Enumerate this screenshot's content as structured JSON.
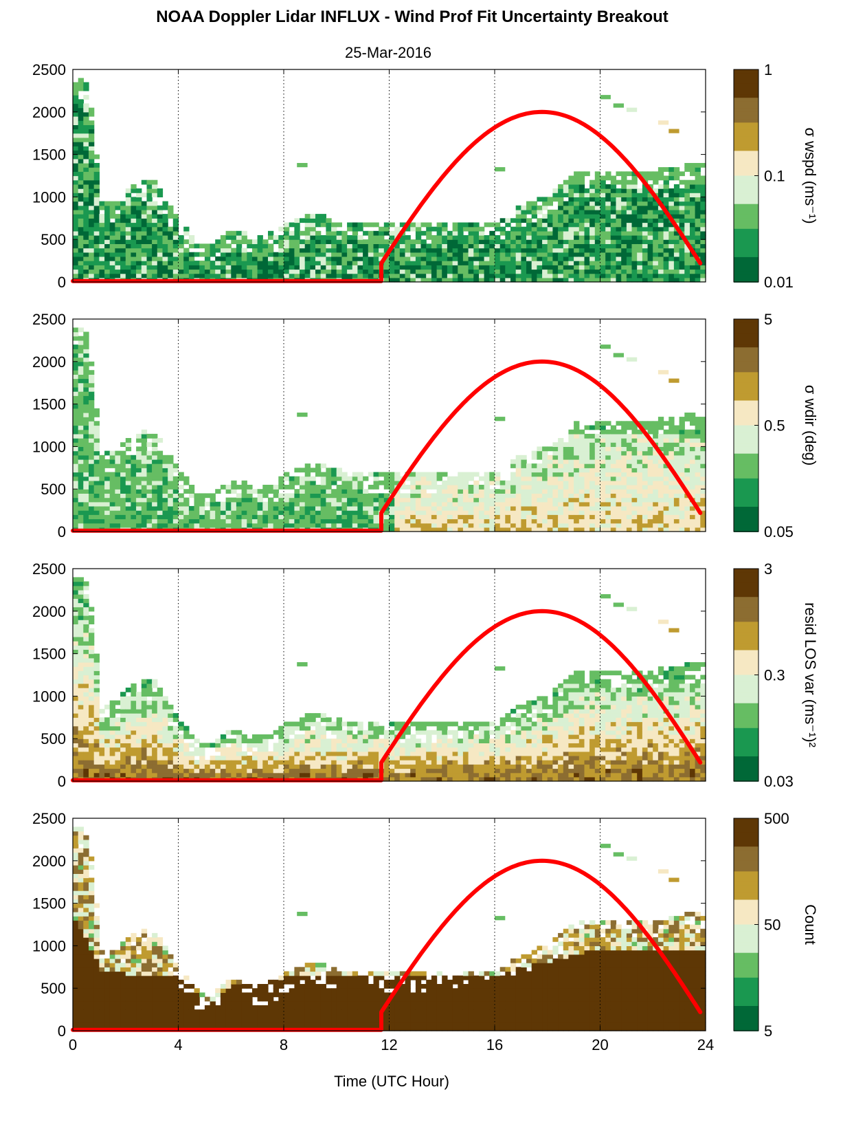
{
  "figure": {
    "title": "NOAA Doppler Lidar INFLUX - Wind Prof Fit Uncertainty Breakout",
    "date": "25-Mar-2016",
    "xlabel": "Time (UTC Hour)"
  },
  "colormap": [
    "#006837",
    "#1a9850",
    "#66bd63",
    "#d9f0d3",
    "#f6e8c3",
    "#bf9b30",
    "#8c6d31",
    "#5e3705"
  ],
  "curve_color": "#ff0000",
  "chart_data": [
    {
      "type": "heatmap",
      "panel": "wspd",
      "colorbar_label": "σ wspd (ms⁻¹)",
      "colorbar_ticks": [
        "1",
        "0.1",
        "0.01"
      ],
      "color_scale": "log",
      "xlim": [
        0,
        24
      ],
      "ylim": [
        0,
        2500
      ],
      "xticks": [
        0,
        4,
        8,
        12,
        16,
        20,
        24
      ],
      "yticks": [
        0,
        500,
        1000,
        1500,
        2000,
        2500
      ],
      "tick_labels": {
        "y": [
          "0",
          "500",
          "1000",
          "1500",
          "2000",
          "2500"
        ]
      },
      "grid": "dotted vertical at 4 h intervals",
      "top_height_profile": {
        "x": [
          0,
          0.5,
          1,
          1.5,
          2,
          3,
          4,
          4.5,
          5,
          6,
          7,
          8,
          9,
          10,
          11,
          12,
          14,
          16,
          17,
          18,
          19,
          20,
          21,
          22,
          23,
          23.8
        ],
        "y": [
          2400,
          2300,
          950,
          900,
          1100,
          1200,
          700,
          500,
          400,
          600,
          500,
          650,
          800,
          700,
          700,
          650,
          700,
          700,
          900,
          1000,
          1300,
          1300,
          1300,
          1300,
          1350,
          1400
        ]
      },
      "value_level": 0.15,
      "curve": {
        "x_start": 11.7,
        "x_peak": 17.8,
        "x_end": 23.8,
        "peak": 2000
      }
    },
    {
      "type": "heatmap",
      "panel": "wdir",
      "colorbar_label": "σ wdir (deg)",
      "colorbar_ticks": [
        "5",
        "0.5",
        "0.05"
      ],
      "color_scale": "log",
      "xlim": [
        0,
        24
      ],
      "ylim": [
        0,
        2500
      ],
      "yticks": [
        0,
        500,
        1000,
        1500,
        2000,
        2500
      ],
      "tick_labels": {
        "y": [
          "0",
          "500",
          "1000",
          "1500",
          "2000",
          "2500"
        ]
      },
      "top_height_profile": {
        "x": [
          0,
          0.5,
          1,
          1.5,
          2,
          3,
          4,
          4.5,
          5,
          6,
          7,
          8,
          9,
          10,
          11,
          12,
          14,
          16,
          17,
          18,
          19,
          20,
          21,
          22,
          23,
          23.8
        ],
        "y": [
          2400,
          2300,
          950,
          900,
          1100,
          1200,
          700,
          500,
          400,
          600,
          500,
          650,
          800,
          700,
          700,
          650,
          700,
          700,
          900,
          1000,
          1300,
          1300,
          1300,
          1300,
          1350,
          1400
        ]
      },
      "value_level": 0.3,
      "curve": {
        "x_start": 11.7,
        "x_peak": 17.8,
        "x_end": 23.8,
        "peak": 2000
      }
    },
    {
      "type": "heatmap",
      "panel": "resid",
      "colorbar_label": "resid LOS var (ms⁻¹)²",
      "colorbar_ticks": [
        "3",
        "0.3",
        "0.03"
      ],
      "color_scale": "log",
      "xlim": [
        0,
        24
      ],
      "ylim": [
        0,
        2500
      ],
      "yticks": [
        0,
        500,
        1000,
        1500,
        2000,
        2500
      ],
      "tick_labels": {
        "y": [
          "0",
          "500",
          "1000",
          "1500",
          "2000",
          "2500"
        ]
      },
      "top_height_profile": {
        "x": [
          0,
          0.5,
          1,
          1.5,
          2,
          3,
          4,
          4.5,
          5,
          6,
          7,
          8,
          9,
          10,
          11,
          12,
          14,
          16,
          17,
          18,
          19,
          20,
          21,
          22,
          23,
          23.8
        ],
        "y": [
          2400,
          2300,
          950,
          900,
          1100,
          1200,
          700,
          500,
          400,
          600,
          500,
          650,
          800,
          700,
          700,
          650,
          700,
          700,
          900,
          1000,
          1300,
          1300,
          1300,
          1300,
          1350,
          1400
        ]
      },
      "value_level": 0.55,
      "curve": {
        "x_start": 11.7,
        "x_peak": 17.8,
        "x_end": 23.8,
        "peak": 2000
      }
    },
    {
      "type": "heatmap",
      "panel": "count",
      "colorbar_label": "Count",
      "colorbar_ticks": [
        "500",
        "50",
        "5"
      ],
      "color_scale": "log",
      "xlim": [
        0,
        24
      ],
      "ylim": [
        0,
        2500
      ],
      "yticks": [
        0,
        500,
        1000,
        1500,
        2000,
        2500
      ],
      "tick_labels": {
        "x": [
          "0",
          "4",
          "8",
          "12",
          "16",
          "20",
          "24"
        ],
        "y": [
          "0",
          "500",
          "1000",
          "1500",
          "2000",
          "2500"
        ]
      },
      "top_height_profile": {
        "x": [
          0,
          0.5,
          1,
          1.5,
          2,
          3,
          4,
          4.5,
          5,
          6,
          7,
          8,
          9,
          10,
          11,
          12,
          14,
          16,
          17,
          18,
          19,
          20,
          21,
          22,
          23,
          23.8
        ],
        "y": [
          2400,
          2300,
          950,
          900,
          1100,
          1200,
          700,
          500,
          400,
          600,
          500,
          650,
          800,
          700,
          700,
          650,
          700,
          700,
          900,
          1000,
          1300,
          1300,
          1300,
          1300,
          1350,
          1400
        ]
      },
      "solid_top_profile": {
        "x": [
          0,
          1,
          2,
          4,
          5,
          6,
          8,
          10,
          12,
          14,
          16,
          18,
          20,
          22,
          23.8
        ],
        "y": [
          1300,
          700,
          650,
          650,
          300,
          500,
          600,
          650,
          650,
          600,
          650,
          800,
          950,
          950,
          950
        ]
      },
      "curve": {
        "x_start": 11.7,
        "x_peak": 17.8,
        "x_end": 23.8,
        "peak": 2000
      }
    }
  ]
}
